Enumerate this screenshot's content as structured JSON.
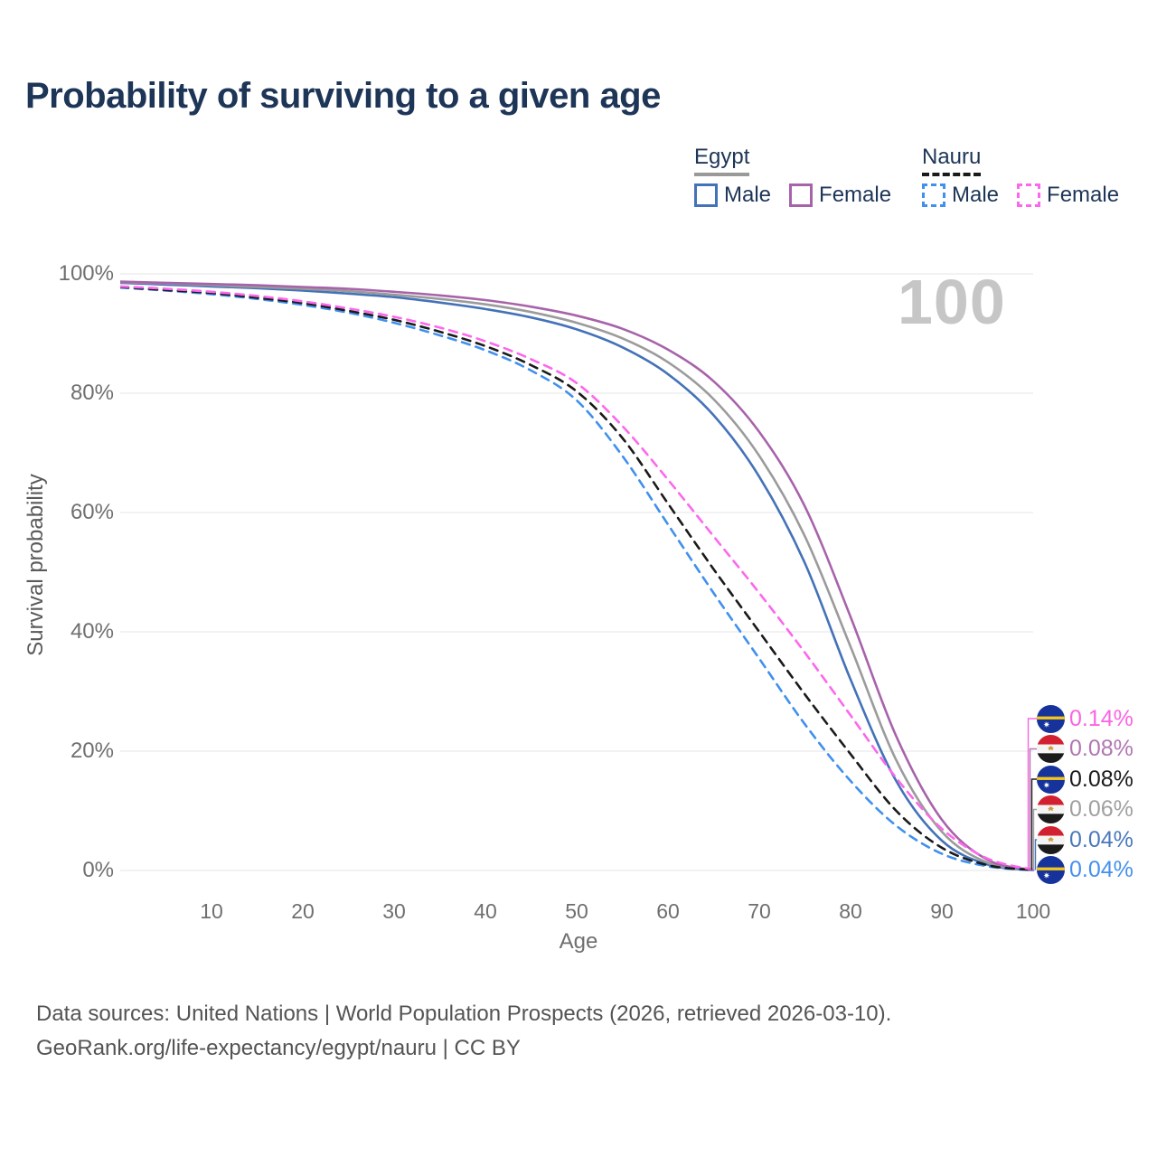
{
  "title": "Probability of surviving to a given age",
  "watermark": "100",
  "colors": {
    "title_text": "#1d3557",
    "axis_text": "#6f6f6f",
    "grid": "#ebebeb",
    "watermark": "#c6c6c6",
    "egypt_underline": "#999999",
    "nauru_underline": "#1a1a1a"
  },
  "legend": {
    "groups": [
      {
        "id": "egypt",
        "label": "Egypt",
        "line_style": "solid",
        "items": [
          {
            "label": "Male",
            "series": "egypt_male"
          },
          {
            "label": "Female",
            "series": "egypt_female"
          }
        ]
      },
      {
        "id": "nauru",
        "label": "Nauru",
        "line_style": "dashed",
        "items": [
          {
            "label": "Male",
            "series": "nauru_male"
          },
          {
            "label": "Female",
            "series": "nauru_female"
          }
        ]
      }
    ]
  },
  "chart_data": {
    "type": "line",
    "title": "Probability of surviving to a given age",
    "xlabel": "Age",
    "ylabel": "Survival probability",
    "xlim": [
      0,
      100
    ],
    "ylim": [
      0,
      100
    ],
    "x_ticks": [
      10,
      20,
      30,
      40,
      50,
      60,
      70,
      80,
      90,
      100
    ],
    "y_ticks": [
      0,
      20,
      40,
      60,
      80,
      100
    ],
    "y_tick_suffix": "%",
    "grid": "horizontal",
    "legend_position": "top-right",
    "x": [
      0,
      5,
      10,
      15,
      20,
      25,
      30,
      35,
      40,
      45,
      50,
      55,
      60,
      65,
      70,
      75,
      80,
      85,
      90,
      95,
      100
    ],
    "series": [
      {
        "id": "egypt_male",
        "country": "Egypt",
        "sex": "male",
        "color": "#4472b8",
        "dash": false,
        "values": [
          98.5,
          98.2,
          97.9,
          97.6,
          97.2,
          96.7,
          96.1,
          95.2,
          94.1,
          92.7,
          90.7,
          87.7,
          83.2,
          76.3,
          66.0,
          51.5,
          32.0,
          15.0,
          5.0,
          1.0,
          0.04
        ]
      },
      {
        "id": "egypt_all",
        "country": "Egypt",
        "sex": "all",
        "color": "#9b9b9b",
        "dash": false,
        "values": [
          98.6,
          98.4,
          98.1,
          97.8,
          97.5,
          97.1,
          96.5,
          95.8,
          94.9,
          93.6,
          91.8,
          89.2,
          85.2,
          79.0,
          69.5,
          56.0,
          37.5,
          18.5,
          6.5,
          1.3,
          0.06
        ]
      },
      {
        "id": "egypt_female",
        "country": "Egypt",
        "sex": "female",
        "color": "#a763aa",
        "dash": false,
        "values": [
          98.7,
          98.5,
          98.3,
          98.1,
          97.8,
          97.5,
          97.0,
          96.4,
          95.6,
          94.5,
          93.0,
          90.8,
          87.3,
          82.0,
          73.5,
          61.0,
          42.5,
          22.5,
          8.5,
          1.8,
          0.08
        ]
      },
      {
        "id": "nauru_male",
        "country": "Nauru",
        "sex": "male",
        "color": "#4090ee",
        "dash": true,
        "values": [
          97.7,
          97.2,
          96.6,
          95.8,
          94.8,
          93.5,
          91.8,
          89.7,
          87.2,
          83.8,
          78.8,
          69.5,
          58.0,
          46.5,
          35.5,
          24.5,
          15.0,
          7.5,
          2.8,
          0.7,
          0.04
        ]
      },
      {
        "id": "nauru_all",
        "country": "Nauru",
        "sex": "all",
        "color": "#1a1a1a",
        "dash": true,
        "values": [
          97.8,
          97.3,
          96.8,
          96.0,
          95.1,
          93.8,
          92.3,
          90.3,
          87.9,
          84.7,
          80.3,
          72.5,
          61.5,
          50.5,
          40.0,
          29.5,
          19.5,
          10.0,
          3.8,
          0.9,
          0.08
        ]
      },
      {
        "id": "nauru_female",
        "country": "Nauru",
        "sex": "female",
        "color": "#fc68ec",
        "dash": true,
        "values": [
          97.9,
          97.5,
          97.0,
          96.3,
          95.4,
          94.2,
          92.8,
          91.0,
          88.7,
          85.7,
          81.7,
          74.5,
          65.5,
          56.0,
          46.5,
          36.5,
          26.0,
          15.5,
          7.0,
          2.0,
          0.14
        ]
      }
    ],
    "end_labels": [
      {
        "flag": "nauru",
        "value": "0.14%",
        "series": "nauru_female",
        "color": "#fb64e4"
      },
      {
        "flag": "egypt",
        "value": "0.08%",
        "series": "egypt_female",
        "color": "#b276b2"
      },
      {
        "flag": "nauru",
        "value": "0.08%",
        "series": "nauru_all",
        "color": "#1a1a1a"
      },
      {
        "flag": "egypt",
        "value": "0.06%",
        "series": "egypt_all",
        "color": "#a0a0a0"
      },
      {
        "flag": "egypt",
        "value": "0.04%",
        "series": "egypt_male",
        "color": "#4a78bc"
      },
      {
        "flag": "nauru",
        "value": "0.04%",
        "series": "nauru_male",
        "color": "#4590ee"
      }
    ]
  },
  "footer": {
    "line1": "Data sources: United Nations | World Population Prospects (2026, retrieved 2026-03-10).",
    "line2": "GeoRank.org/life-expectancy/egypt/nauru | CC BY"
  }
}
